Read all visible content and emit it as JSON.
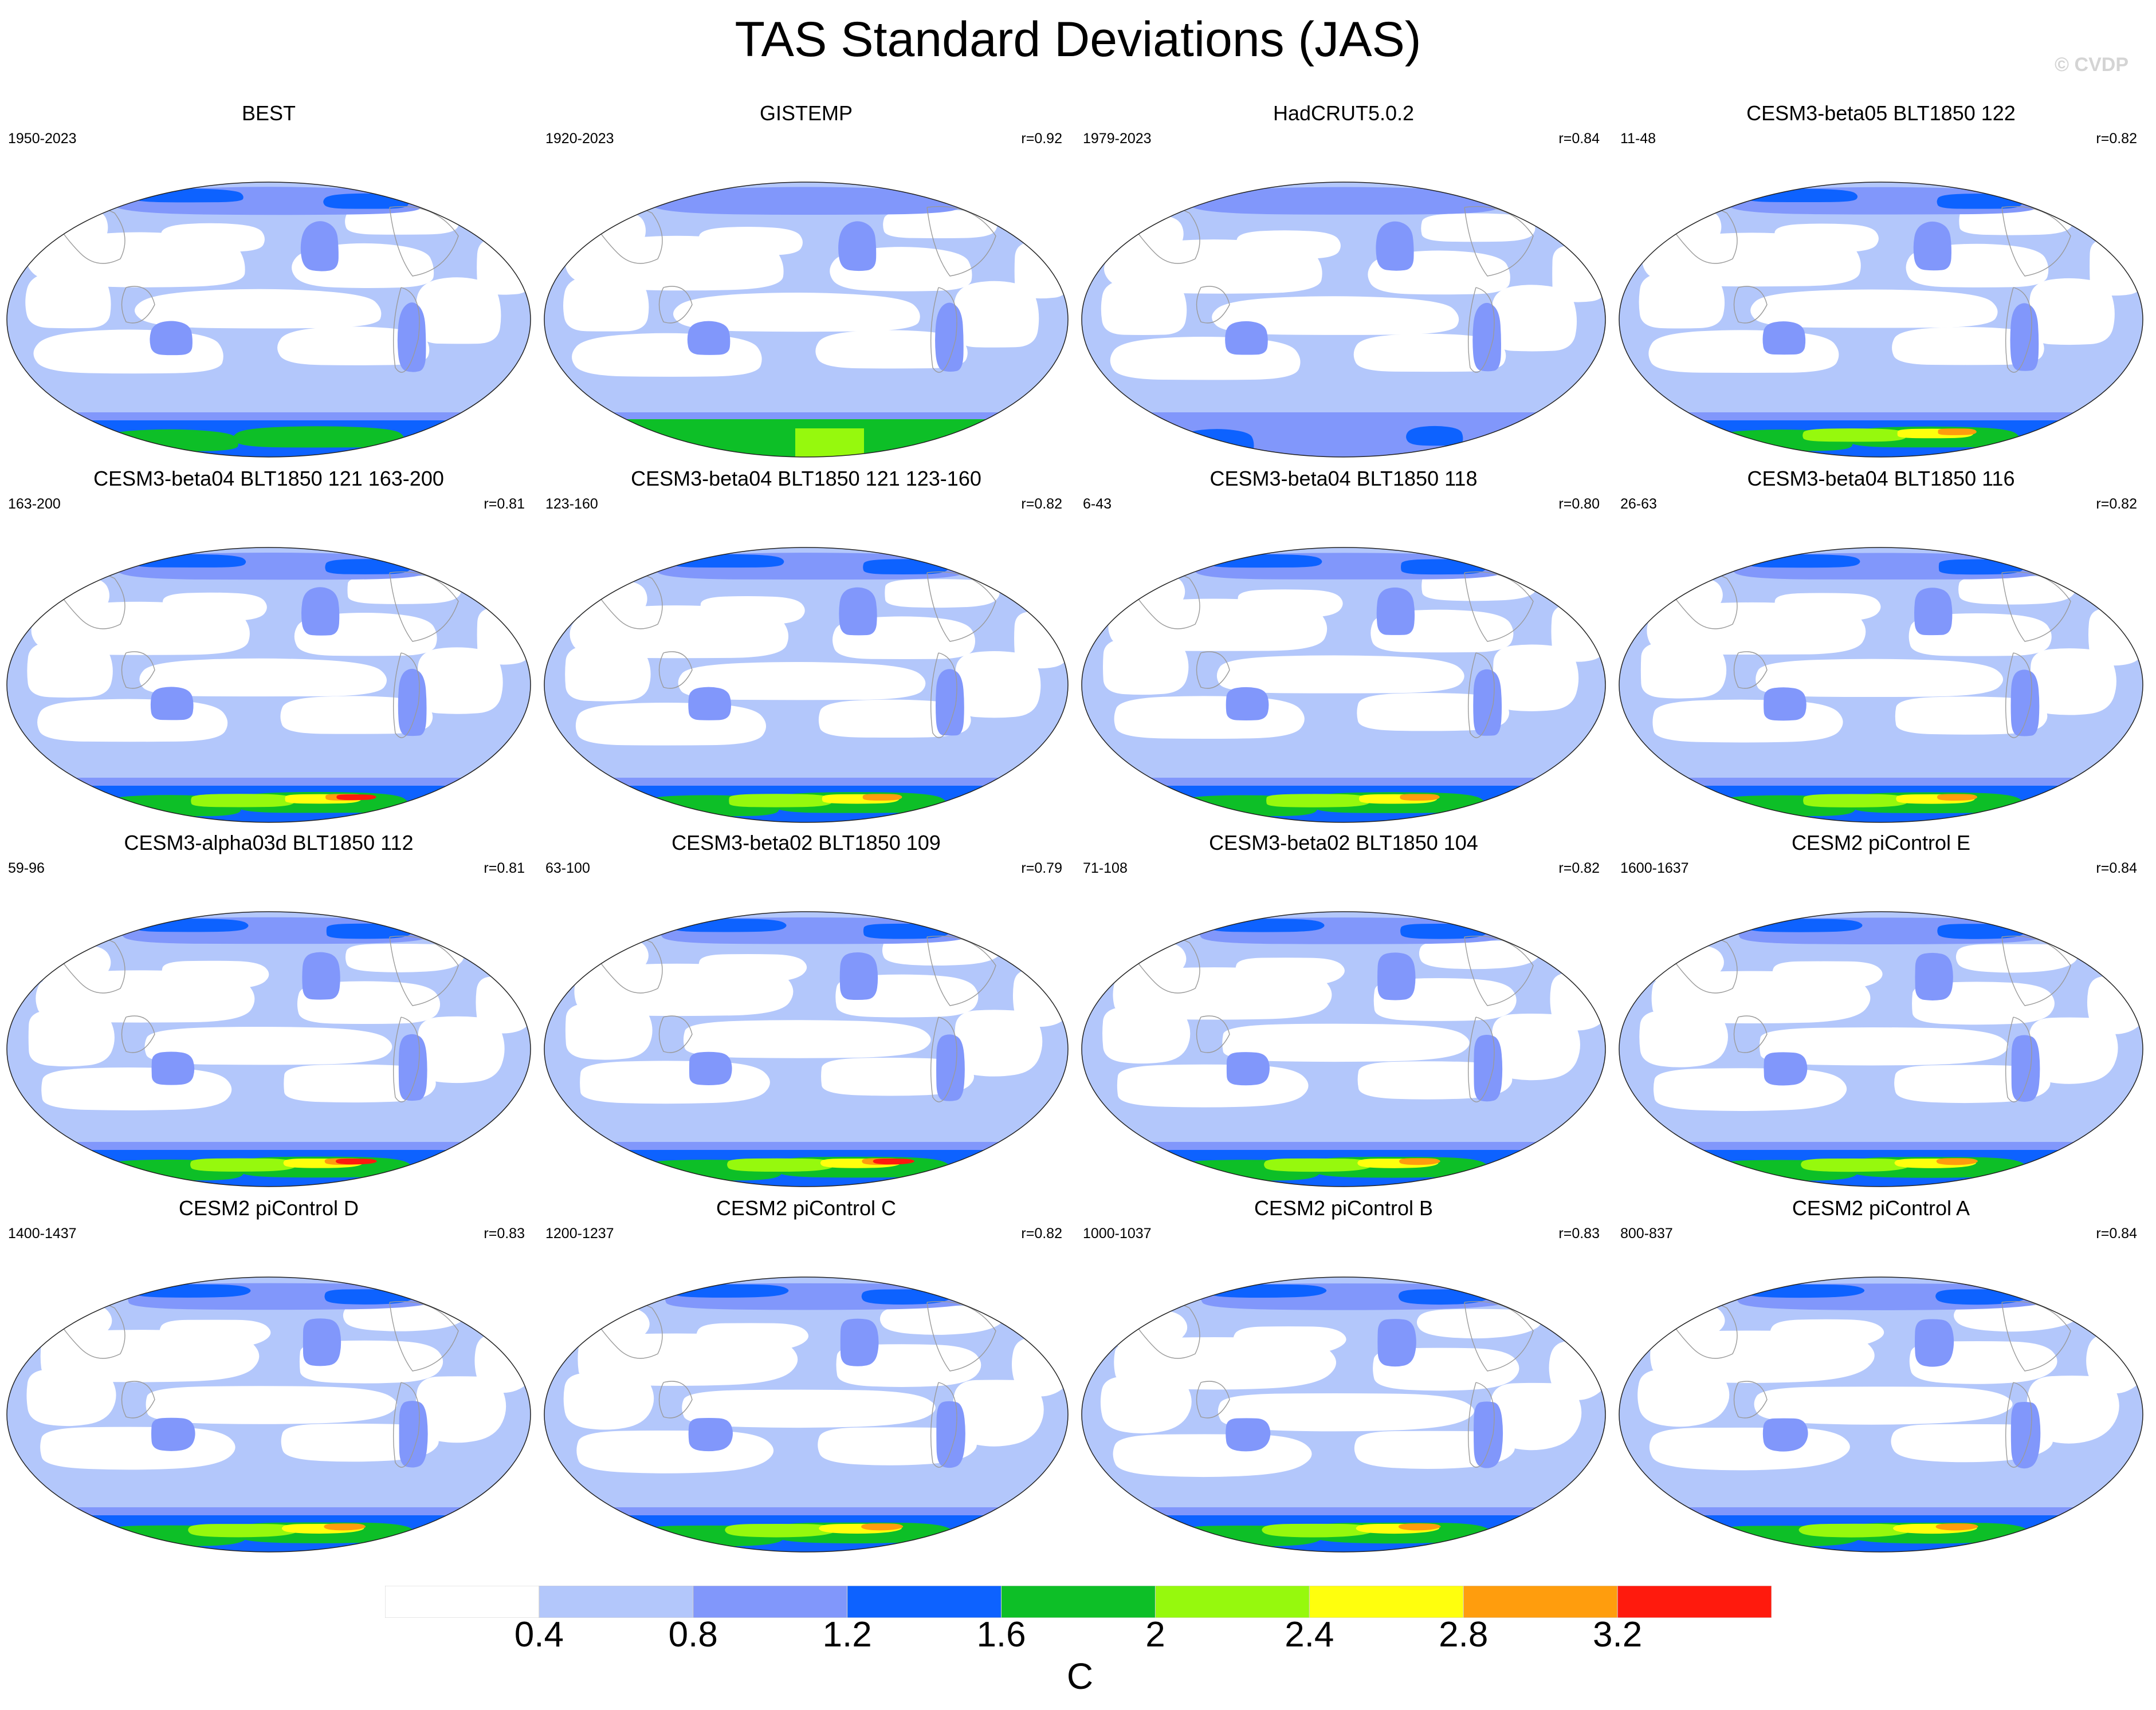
{
  "title": "TAS Standard Deviations (JAS)",
  "watermark": "© CVDP",
  "colorbar": {
    "units": "C",
    "labels": [
      "0.4",
      "0.8",
      "1.2",
      "1.6",
      "2",
      "2.4",
      "2.8",
      "3.2"
    ],
    "colors": [
      "#ffffff",
      "#b3c7fb",
      "#8197fb",
      "#0d62ff",
      "#0dbf27",
      "#96f90d",
      "#ffff0d",
      "#ff9d0d",
      "#ff1a0d"
    ]
  },
  "panels": [
    {
      "title": "BEST",
      "years": "1950-2023",
      "r": ""
    },
    {
      "title": "GISTEMP",
      "years": "1920-2023",
      "r": "r=0.92"
    },
    {
      "title": "HadCRUT5.0.2",
      "years": "1979-2023",
      "r": "r=0.84"
    },
    {
      "title": "CESM3-beta05 BLT1850 122",
      "years": "11-48",
      "r": "r=0.82"
    },
    {
      "title": "CESM3-beta04 BLT1850 121 163-200",
      "years": "163-200",
      "r": "r=0.81"
    },
    {
      "title": "CESM3-beta04 BLT1850 121 123-160",
      "years": "123-160",
      "r": "r=0.82"
    },
    {
      "title": "CESM3-beta04 BLT1850 118",
      "years": "6-43",
      "r": "r=0.80"
    },
    {
      "title": "CESM3-beta04 BLT1850 116",
      "years": "26-63",
      "r": "r=0.82"
    },
    {
      "title": "CESM3-alpha03d BLT1850 112",
      "years": "59-96",
      "r": "r=0.81"
    },
    {
      "title": "CESM3-beta02 BLT1850 109",
      "years": "63-100",
      "r": "r=0.79"
    },
    {
      "title": "CESM3-beta02 BLT1850 104",
      "years": "71-108",
      "r": "r=0.82"
    },
    {
      "title": "CESM2 piControl E",
      "years": "1600-1637",
      "r": "r=0.84"
    },
    {
      "title": "CESM2 piControl D",
      "years": "1400-1437",
      "r": "r=0.83"
    },
    {
      "title": "CESM2 piControl C",
      "years": "1200-1237",
      "r": "r=0.82"
    },
    {
      "title": "CESM2 piControl B",
      "years": "1000-1037",
      "r": "r=0.83"
    },
    {
      "title": "CESM2 piControl A",
      "years": "800-837",
      "r": "r=0.84"
    }
  ]
}
